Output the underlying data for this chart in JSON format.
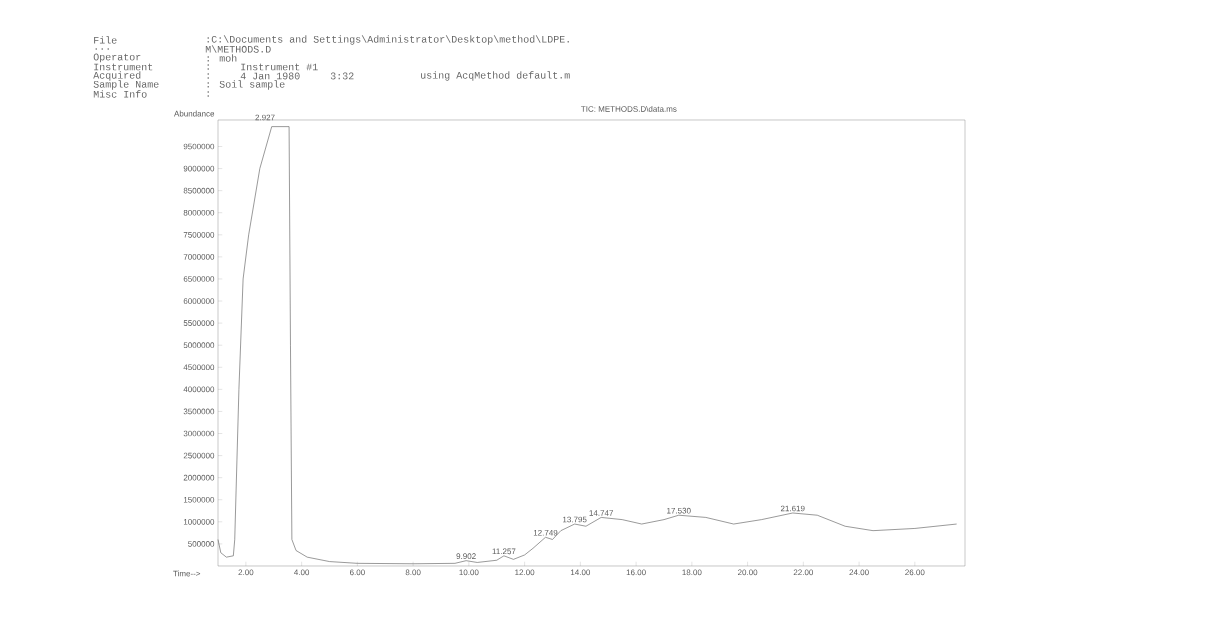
{
  "chart_data": {
    "type": "line",
    "title": "TIC: METHODS.D\\data.ms",
    "xlabel": "Time-->",
    "ylabel": "Abundance",
    "xlim": [
      1,
      27.8
    ],
    "ylim": [
      0,
      10100000
    ],
    "xticks": [
      {
        "value": 2,
        "label": "2.00"
      },
      {
        "value": 4,
        "label": "4.00"
      },
      {
        "value": 6,
        "label": "6.00"
      },
      {
        "value": 8,
        "label": "8.00"
      },
      {
        "value": 10,
        "label": "10.00"
      },
      {
        "value": 12,
        "label": "12.00"
      },
      {
        "value": 14,
        "label": "14.00"
      },
      {
        "value": 16,
        "label": "16.00"
      },
      {
        "value": 18,
        "label": "18.00"
      },
      {
        "value": 20,
        "label": "20.00"
      },
      {
        "value": 22,
        "label": "22.00"
      },
      {
        "value": 24,
        "label": "24.00"
      },
      {
        "value": 26,
        "label": "26.00"
      }
    ],
    "yticks": [
      500000,
      1000000,
      1500000,
      2000000,
      2500000,
      3000000,
      3500000,
      4000000,
      4500000,
      5000000,
      5500000,
      6000000,
      6500000,
      7000000,
      7500000,
      8000000,
      8500000,
      9000000,
      9500000
    ],
    "grid": false,
    "marker": "none",
    "line_style": "solid",
    "series": [
      {
        "color": "#555555",
        "x": [
          1.0,
          1.1,
          1.3,
          1.55,
          1.6,
          1.75,
          1.9,
          2.1,
          2.5,
          2.927,
          3.55,
          3.6,
          3.65,
          3.8,
          4.2,
          5.0,
          6.0,
          8.0,
          9.5,
          9.902,
          10.3,
          11.0,
          11.257,
          11.6,
          12.0,
          12.3,
          12.749,
          13.0,
          13.3,
          13.795,
          14.2,
          14.747,
          15.5,
          16.2,
          17.0,
          17.53,
          18.5,
          19.5,
          20.5,
          21.619,
          22.5,
          23.5,
          24.5,
          26.0,
          27.5
        ],
        "values": [
          600000,
          300000,
          200000,
          230000,
          600000,
          4000000,
          6500000,
          7500000,
          9000000,
          9950000,
          9950000,
          5000000,
          600000,
          350000,
          200000,
          100000,
          60000,
          50000,
          60000,
          120000,
          80000,
          130000,
          230000,
          150000,
          250000,
          400000,
          650000,
          600000,
          800000,
          950000,
          900000,
          1100000,
          1050000,
          950000,
          1050000,
          1150000,
          1100000,
          950000,
          1050000,
          1200000,
          1150000,
          900000,
          800000,
          850000,
          950000
        ]
      }
    ],
    "annotations": [
      "File",
      ":C:\\Documents and Settings\\Administrator\\Desktop\\method\\LDPE.",
      "...",
      "M\\METHODS.D",
      "Operator",
      ": moh",
      "Instrument",
      ":",
      "Instrument #1",
      "Acquired",
      ":",
      "4 Jan 1980",
      "3:32",
      "using AcqMethod default.m",
      "Sample Name",
      ": Soil sample",
      "Misc Info",
      ":",
      "2.927",
      {
        "text": "9.902",
        "x": 9.902,
        "y": 120000
      },
      {
        "text": "11.257",
        "x": 11.257,
        "y": 230000
      },
      {
        "text": "12.749",
        "x": 12.749,
        "y": 650000
      },
      {
        "text": "13.795",
        "x": 13.795,
        "y": 950000
      },
      {
        "text": "14.747",
        "x": 14.747,
        "y": 1100000
      },
      {
        "text": "17.530",
        "x": 17.53,
        "y": 1150000
      },
      {
        "text": "21.619",
        "x": 21.619,
        "y": 1200000
      }
    ]
  }
}
